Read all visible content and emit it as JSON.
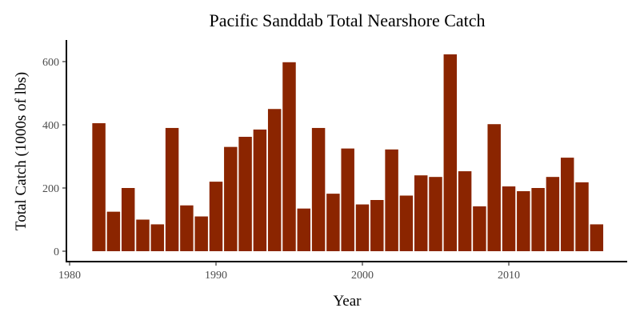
{
  "chart_data": {
    "type": "bar",
    "title": "Pacific Sanddab Total Nearshore Catch",
    "xlabel": "Year",
    "ylabel": "Total Catch (1000s of lbs)",
    "x": [
      1982,
      1983,
      1984,
      1985,
      1986,
      1987,
      1988,
      1989,
      1990,
      1991,
      1992,
      1993,
      1994,
      1995,
      1996,
      1997,
      1998,
      1999,
      2000,
      2001,
      2002,
      2003,
      2004,
      2005,
      2006,
      2007,
      2008,
      2009,
      2010,
      2011,
      2012,
      2013,
      2014,
      2015,
      2016
    ],
    "values": [
      405,
      125,
      200,
      100,
      85,
      390,
      145,
      110,
      220,
      330,
      362,
      385,
      450,
      598,
      135,
      390,
      182,
      325,
      148,
      162,
      322,
      176,
      240,
      235,
      623,
      253,
      142,
      402,
      205,
      190,
      200,
      235,
      296,
      218,
      85
    ],
    "xlim": [
      1979.5,
      2017.5
    ],
    "ylim": [
      0,
      650
    ],
    "xticks": [
      1980,
      1990,
      2000,
      2010
    ],
    "yticks": [
      0,
      200,
      400,
      600
    ],
    "xtick_labels": [
      "1980",
      "1990",
      "2000",
      "2010"
    ],
    "ytick_labels": [
      "0",
      "200",
      "400",
      "600"
    ],
    "bar_color": "#8B2500",
    "grid": false,
    "legend": "none"
  }
}
